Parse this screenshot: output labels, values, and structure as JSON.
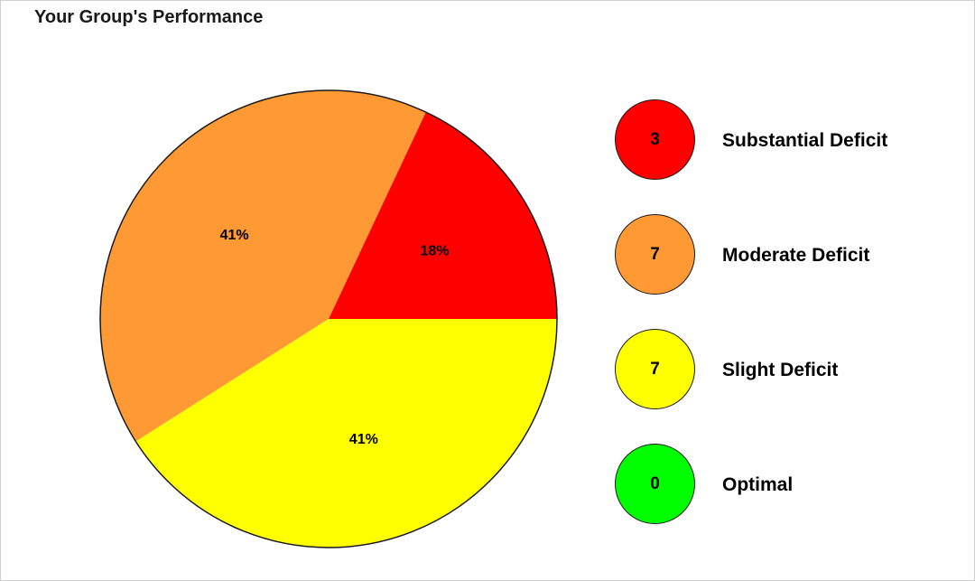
{
  "title": "Your Group's Performance",
  "chart_data": {
    "type": "pie",
    "title": "Your Group's Performance",
    "slices": [
      {
        "name": "Substantial Deficit",
        "count": 3,
        "value": 18,
        "label": "18%",
        "color": "#ff0000"
      },
      {
        "name": "Moderate Deficit",
        "count": 7,
        "value": 41,
        "label": "41%",
        "color": "#ff9933"
      },
      {
        "name": "Slight Deficit",
        "count": 7,
        "value": 41,
        "label": "41%",
        "color": "#ffff00"
      }
    ],
    "legend": [
      {
        "name": "Substantial Deficit",
        "count": "3",
        "color": "#ff0000"
      },
      {
        "name": "Moderate Deficit",
        "count": "7",
        "color": "#ff9933"
      },
      {
        "name": "Slight Deficit",
        "count": "7",
        "color": "#ffff00"
      },
      {
        "name": "Optimal",
        "count": "0",
        "color": "#00ff00"
      }
    ],
    "legend_position": "right"
  }
}
